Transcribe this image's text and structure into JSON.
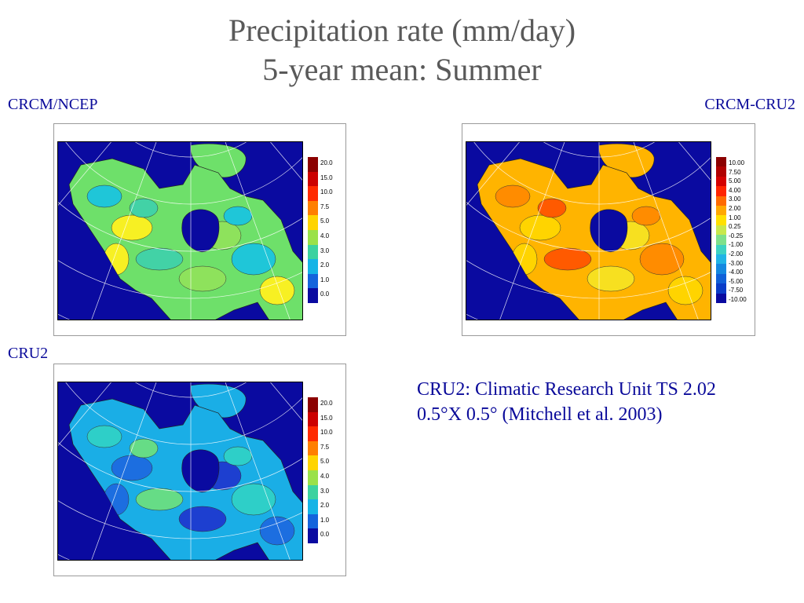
{
  "title": {
    "line1": "Precipitation rate (mm/day)",
    "line2": "5-year mean: Summer"
  },
  "panels": [
    {
      "label": "CRCM/NCEP",
      "palette": [
        "#8b0000",
        "#cc0000",
        "#ff2a00",
        "#ff7f00",
        "#ffd400",
        "#9ae14a",
        "#3cd2a0",
        "#15b4e6",
        "#1464dc",
        "#0a0aa0"
      ],
      "ticks": [
        "20.0",
        "15.0",
        "10.0",
        "7.5",
        "5.0",
        "4.0",
        "3.0",
        "2.0",
        "1.0",
        "0.0"
      ],
      "land_colors": [
        "#6ee06a",
        "#1fc6d8",
        "#f7f023",
        "#42d2a6",
        "#8ee25c"
      ]
    },
    {
      "label": "CRCM-CRU2",
      "palette": [
        "#8b0000",
        "#b00000",
        "#d40000",
        "#ff2400",
        "#ff6a00",
        "#ffa800",
        "#ffe000",
        "#c8e84c",
        "#7ee08a",
        "#3cd2c2",
        "#20b4e6",
        "#1488e0",
        "#1060d8",
        "#0a3cc8",
        "#0a0aa0"
      ],
      "ticks": [
        "10.00",
        "7.50",
        "5.00",
        "4.00",
        "3.00",
        "2.00",
        "1.00",
        "0.25",
        "-0.25",
        "-1.00",
        "-2.00",
        "-3.00",
        "-4.00",
        "-5.00",
        "-7.50",
        "-10.00"
      ],
      "land_colors": [
        "#ffb400",
        "#ff8c00",
        "#ffd400",
        "#ff5a00",
        "#f7e020"
      ]
    },
    {
      "label": "CRU2",
      "palette": [
        "#8b0000",
        "#cc0000",
        "#ff2a00",
        "#ff7f00",
        "#ffd400",
        "#9ae14a",
        "#3cd2a0",
        "#15b4e6",
        "#1464dc",
        "#0a0aa0"
      ],
      "ticks": [
        "20.0",
        "15.0",
        "10.0",
        "7.5",
        "5.0",
        "4.0",
        "3.0",
        "2.0",
        "1.0",
        "0.0"
      ],
      "land_colors": [
        "#1aaee6",
        "#2ecfc8",
        "#1c6ee0",
        "#66dc86",
        "#1d3fd0"
      ]
    }
  ],
  "note": {
    "line1": "CRU2: Climatic Research Unit TS 2.02",
    "line2": "0.5°X 0.5° (Mitchell et al. 2003)"
  }
}
